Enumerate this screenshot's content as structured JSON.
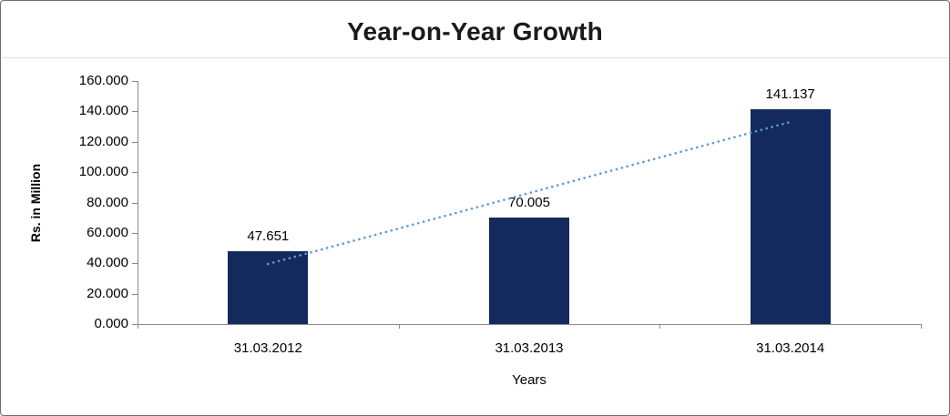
{
  "chart_data": {
    "type": "bar",
    "title": "Year-on-Year Growth",
    "categories": [
      "31.03.2012",
      "31.03.2013",
      "31.03.2014"
    ],
    "values": [
      47.651,
      70.005,
      141.137
    ],
    "data_labels": [
      "47.651",
      "70.005",
      "141.137"
    ],
    "xlabel": "Years",
    "ylabel": "Rs. in Million",
    "ylim": [
      0,
      160
    ],
    "ytick_values": [
      0,
      20,
      40,
      60,
      80,
      100,
      120,
      140,
      160
    ],
    "ytick_labels": [
      "0.000",
      "20.000",
      "40.000",
      "60.000",
      "80.000",
      "100.000",
      "120.000",
      "140.000",
      "160.000"
    ],
    "grid": false,
    "legend": "none",
    "bar_color": "#132A5E",
    "axis_color": "#8c8c8c",
    "trendline": {
      "type": "linear",
      "style": "dotted",
      "color": "#5B9BD5"
    }
  }
}
